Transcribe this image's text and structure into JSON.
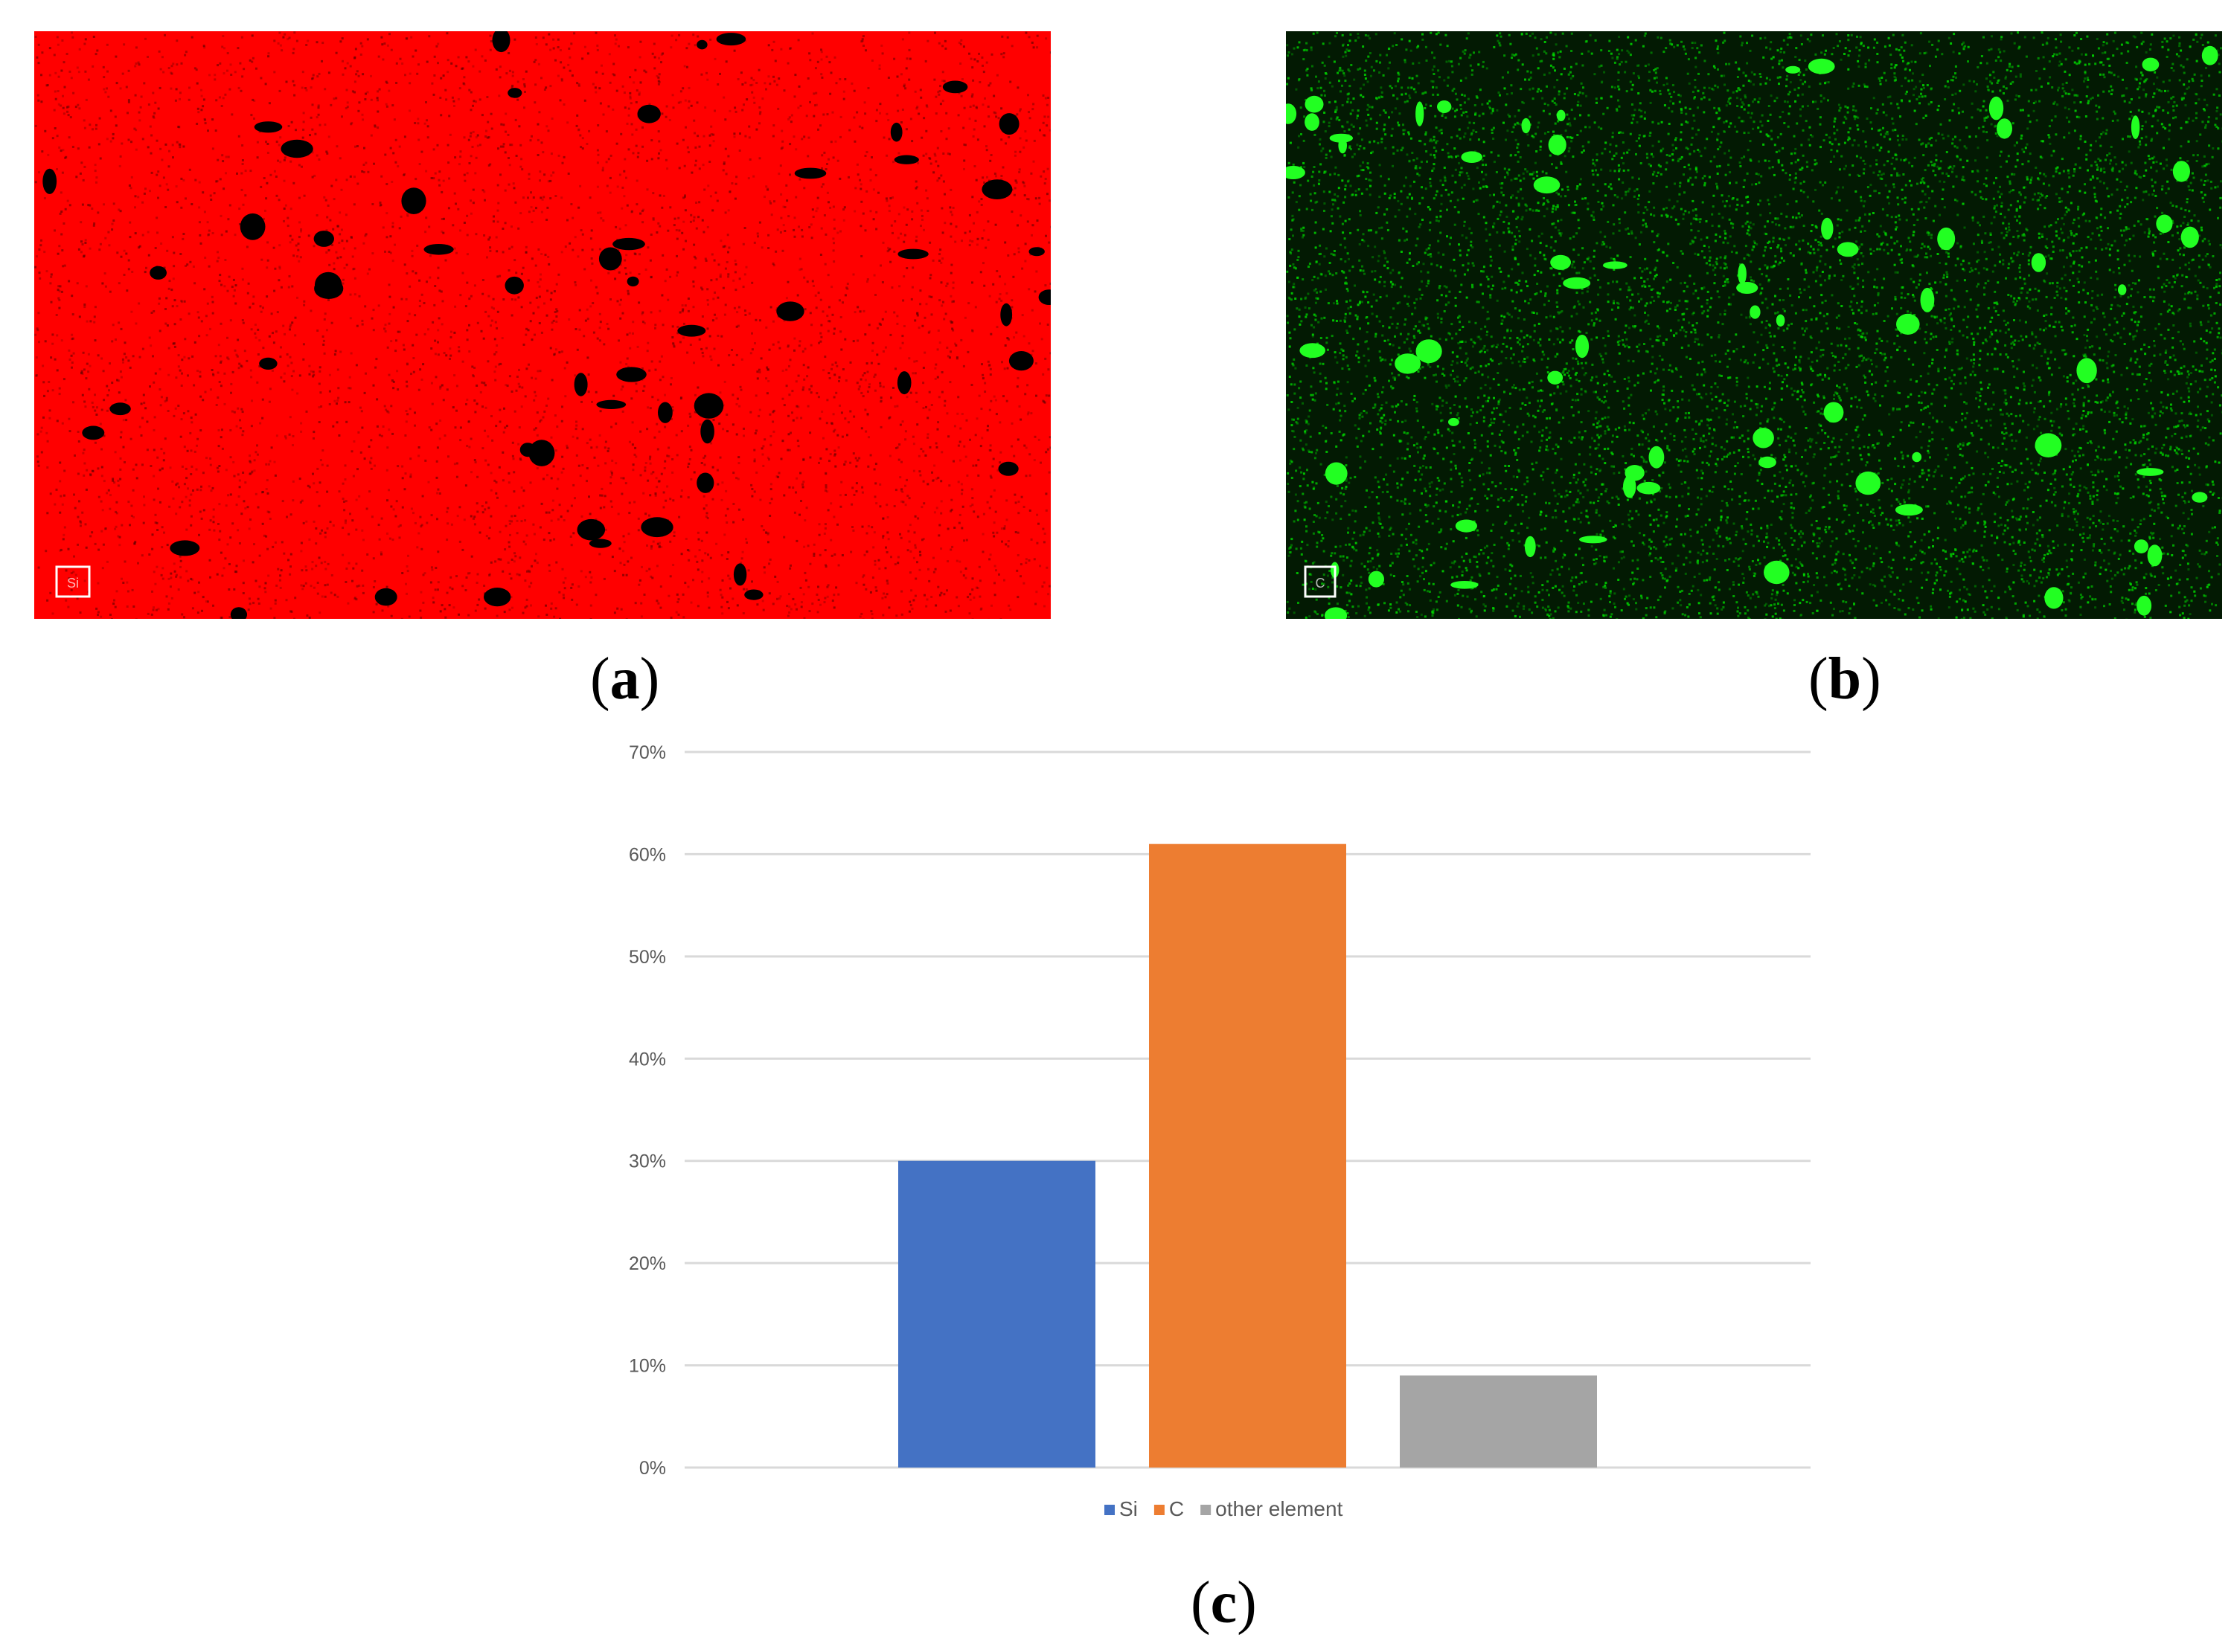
{
  "panels": {
    "a": {
      "label_letter": "a",
      "map_tag": "Si",
      "base_color": "#ff0000",
      "pore_color": "#000000"
    },
    "b": {
      "label_letter": "b",
      "map_tag": "C",
      "base_color": "#00d400",
      "bright_color": "#22ff22",
      "background_color": "#031a03"
    },
    "c": {
      "label_letter": "c"
    }
  },
  "chart_data": {
    "type": "bar",
    "categories": [
      "Si",
      "C",
      "other element"
    ],
    "values": [
      30,
      61,
      9
    ],
    "colors": [
      "#4472c4",
      "#ed7d31",
      "#a5a5a5"
    ],
    "yticks": [
      "0%",
      "10%",
      "20%",
      "30%",
      "40%",
      "50%",
      "60%",
      "70%"
    ],
    "ylim": [
      0,
      70
    ],
    "grid": true,
    "legend_position": "bottom",
    "legend": [
      {
        "name": "Si",
        "color": "#4472c4"
      },
      {
        "name": "C",
        "color": "#ed7d31"
      },
      {
        "name": "other element",
        "color": "#a5a5a5"
      }
    ]
  }
}
